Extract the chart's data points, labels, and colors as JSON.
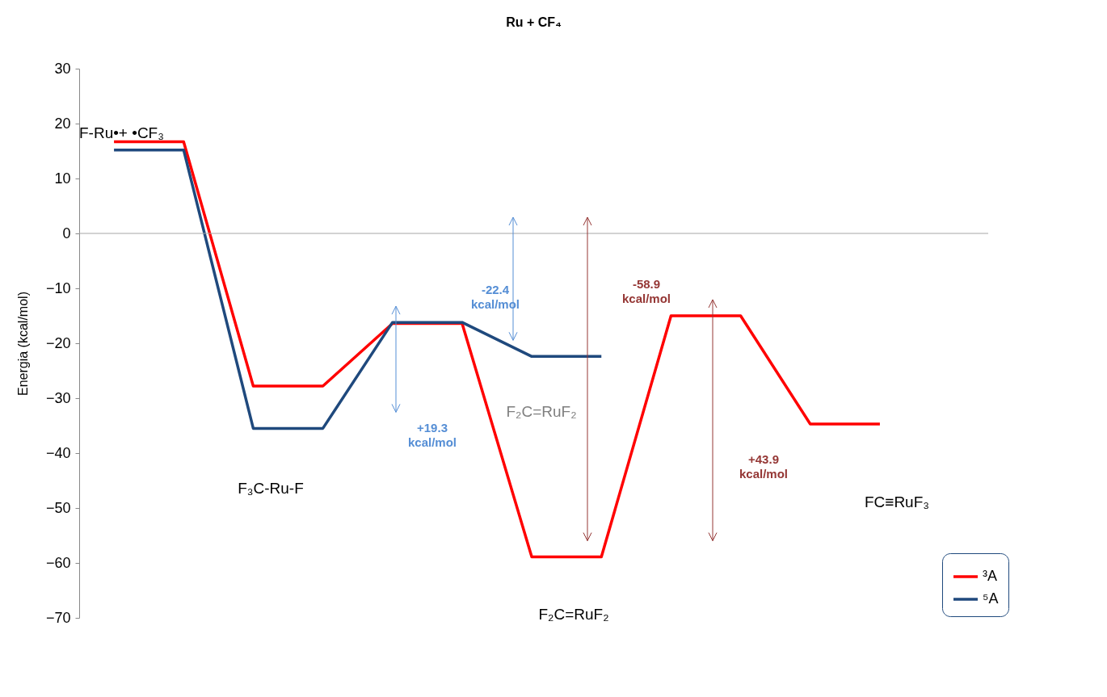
{
  "chart_data": {
    "type": "line",
    "title": "Ru + CF₄",
    "ylabel": "Energia (kcal/mol)",
    "categories": [
      null,
      null,
      null,
      null,
      null,
      null,
      null,
      null,
      null,
      null,
      null,
      null
    ],
    "series": [
      {
        "name": "³A",
        "color": "#ff0000",
        "values": [
          16.7,
          16.7,
          -27.8,
          -27.8,
          -16.4,
          -16.4,
          -58.9,
          -58.9,
          -15.0,
          -15.0,
          -34.7,
          -34.7
        ]
      },
      {
        "name": "⁵A",
        "color": "#1f497d",
        "values": [
          15.2,
          15.2,
          -35.5,
          -35.5,
          -16.2,
          -16.2,
          -22.4,
          -22.4,
          null,
          null,
          null,
          null
        ]
      }
    ],
    "ylim": [
      -70,
      30
    ],
    "yticks": [
      -70,
      -60,
      -50,
      -40,
      -30,
      -20,
      -10,
      0,
      10,
      20,
      30
    ],
    "tick_labels": "y",
    "legend": "bottom right",
    "ref_lines": [
      {
        "axis": "y",
        "value": 0,
        "color": "#a6a6a6"
      }
    ],
    "annotations": [
      "F-Ru•+ •CF₃",
      "F₃C-Ru-F",
      "F₂C=RuF₂",
      "F₂C=RuF₂",
      "FC≡RuF₃",
      "-22.4 kcal/mol",
      "+19.3 kcal/mol",
      "-58.9 kcal/mol",
      "+43.9 kcal/mol"
    ]
  }
}
